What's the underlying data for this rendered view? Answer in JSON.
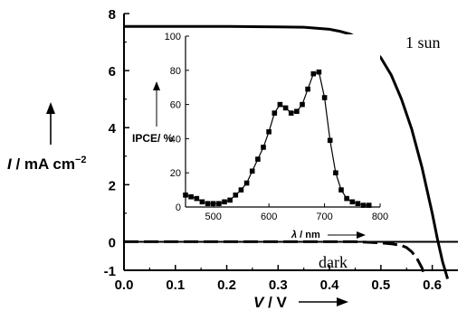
{
  "chart_data": [
    {
      "type": "line",
      "xlabel_symbol": "V",
      "xlabel_unit": " / V",
      "ylabel_symbol": "I",
      "ylabel_unit": " / mA cm",
      "ylabel_exp": "−2",
      "xlim": [
        0.0,
        0.65
      ],
      "ylim": [
        -1,
        8
      ],
      "xticks": [
        "0.0",
        "0.1",
        "0.2",
        "0.3",
        "0.4",
        "0.5",
        "0.6"
      ],
      "yticks": [
        "-1",
        "0",
        "2",
        "4",
        "6",
        "8"
      ],
      "series": [
        {
          "name": "1 sun",
          "x": [
            0.0,
            0.05,
            0.1,
            0.15,
            0.2,
            0.25,
            0.3,
            0.35,
            0.4,
            0.42,
            0.44,
            0.46,
            0.48,
            0.5,
            0.52,
            0.54,
            0.56,
            0.58,
            0.6,
            0.61,
            0.62,
            0.63
          ],
          "y": [
            7.55,
            7.55,
            7.55,
            7.55,
            7.55,
            7.54,
            7.53,
            7.52,
            7.45,
            7.38,
            7.28,
            7.1,
            6.85,
            6.45,
            5.85,
            5.0,
            3.95,
            2.6,
            1.0,
            0.1,
            -0.7,
            -1.3
          ]
        },
        {
          "name": "dark",
          "x": [
            0.0,
            0.1,
            0.2,
            0.3,
            0.4,
            0.45,
            0.5,
            0.52,
            0.54,
            0.55,
            0.56,
            0.57,
            0.58,
            0.585
          ],
          "y": [
            0.0,
            0.0,
            0.0,
            0.0,
            0.0,
            0.0,
            -0.04,
            -0.07,
            -0.13,
            -0.2,
            -0.35,
            -0.58,
            -0.92,
            -1.2
          ]
        }
      ]
    },
    {
      "type": "line",
      "xlabel_symbol": "λ",
      "xlabel_unit": " / nm",
      "ylabel": "IPCE/ %",
      "xlim": [
        450,
        800
      ],
      "ylim": [
        0,
        100
      ],
      "xticks": [
        "500",
        "600",
        "700",
        "800"
      ],
      "yticks": [
        "0",
        "20",
        "40",
        "60",
        "80",
        "100"
      ],
      "series": [
        {
          "name": "IPCE",
          "x": [
            450,
            460,
            470,
            480,
            490,
            500,
            510,
            520,
            530,
            540,
            550,
            560,
            570,
            580,
            590,
            600,
            610,
            620,
            630,
            640,
            650,
            660,
            670,
            680,
            690,
            700,
            710,
            720,
            730,
            740,
            750,
            760,
            770,
            780
          ],
          "y": [
            7,
            6,
            5,
            3,
            2,
            2,
            2,
            3,
            4,
            7,
            10,
            14,
            21,
            28,
            35,
            44,
            55,
            60,
            58,
            55,
            56,
            60,
            69,
            78,
            79,
            64,
            39,
            20,
            10,
            5,
            3,
            2,
            1,
            1
          ]
        }
      ]
    }
  ]
}
